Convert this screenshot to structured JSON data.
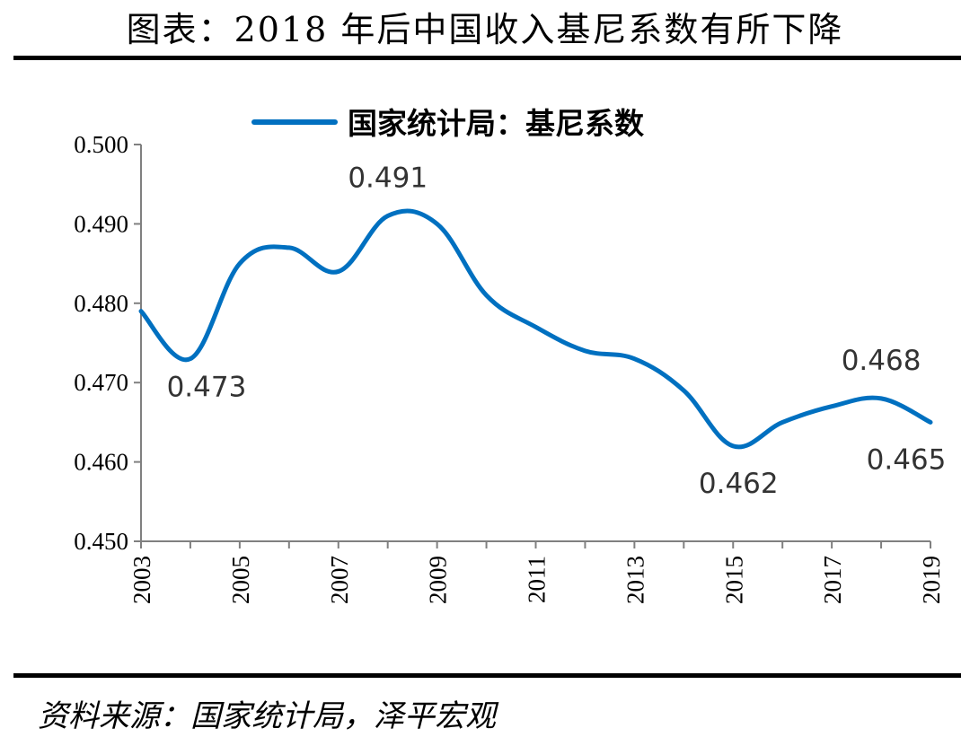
{
  "header": {
    "title": "图表：2018 年后中国收入基尼系数有所下降"
  },
  "footer": {
    "source": "资料来源：国家统计局，泽平宏观"
  },
  "chart_data": {
    "type": "line",
    "x": [
      2003,
      2004,
      2005,
      2006,
      2007,
      2008,
      2009,
      2010,
      2011,
      2012,
      2013,
      2014,
      2015,
      2016,
      2017,
      2018,
      2019
    ],
    "series": [
      {
        "name": "国家统计局：基尼系数",
        "values": [
          0.479,
          0.473,
          0.485,
          0.487,
          0.484,
          0.491,
          0.49,
          0.481,
          0.477,
          0.474,
          0.473,
          0.469,
          0.462,
          0.465,
          0.467,
          0.468,
          0.465
        ],
        "color": "#0070C0"
      }
    ],
    "ylim": [
      0.45,
      0.5
    ],
    "yticks": [
      "0.450",
      "0.460",
      "0.470",
      "0.480",
      "0.490",
      "0.500"
    ],
    "xticks": [
      "2003",
      "2005",
      "2007",
      "2009",
      "2011",
      "2013",
      "2015",
      "2017",
      "2019"
    ],
    "annotations": [
      {
        "x": 2004,
        "y": 0.473,
        "text": "0.473"
      },
      {
        "x": 2008,
        "y": 0.491,
        "text": "0.491"
      },
      {
        "x": 2015,
        "y": 0.462,
        "text": "0.462"
      },
      {
        "x": 2018,
        "y": 0.468,
        "text": "0.468"
      },
      {
        "x": 2019,
        "y": 0.465,
        "text": "0.465"
      }
    ],
    "legend": "top-center",
    "grid": false,
    "xlabel": "",
    "ylabel": ""
  }
}
